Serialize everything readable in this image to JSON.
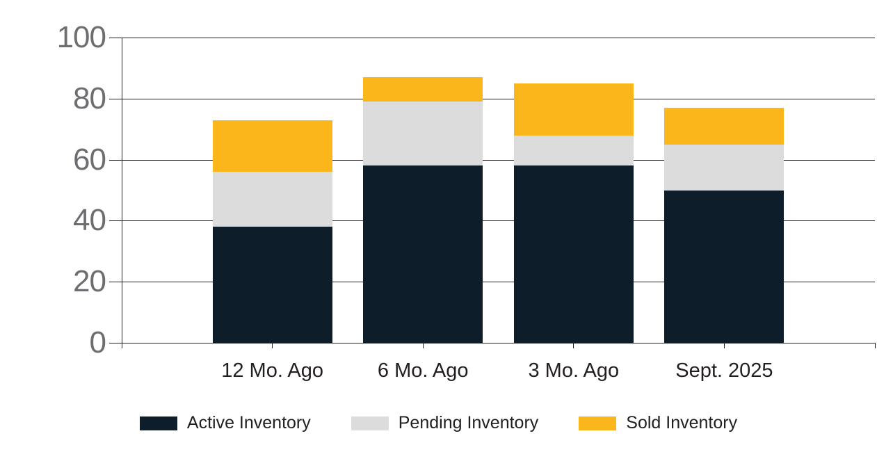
{
  "chart_data": {
    "type": "bar",
    "stacked": true,
    "categories": [
      "12 Mo. Ago",
      "6 Mo. Ago",
      "3 Mo. Ago",
      "Sept. 2025"
    ],
    "series": [
      {
        "name": "Active Inventory",
        "color": "#0d1e2a",
        "values": [
          38,
          58,
          58,
          50
        ]
      },
      {
        "name": "Pending Inventory",
        "color": "#dcdcdc",
        "values": [
          18,
          21,
          10,
          15
        ]
      },
      {
        "name": "Sold Inventory",
        "color": "#fbb61b",
        "values": [
          17,
          8,
          17,
          12
        ]
      }
    ],
    "stack_totals": [
      73,
      87,
      85,
      77
    ],
    "title": "",
    "xlabel": "",
    "ylabel": "",
    "ylim": [
      0,
      100
    ],
    "yticks": [
      0,
      20,
      40,
      60,
      80,
      100
    ],
    "grid": true,
    "legend_position": "bottom"
  },
  "colors": {
    "background": "#ffffff",
    "gridline": "#231f20",
    "axis_tick_text": "#6d6e71",
    "category_text": "#231f20",
    "legend_text": "#231f20"
  }
}
